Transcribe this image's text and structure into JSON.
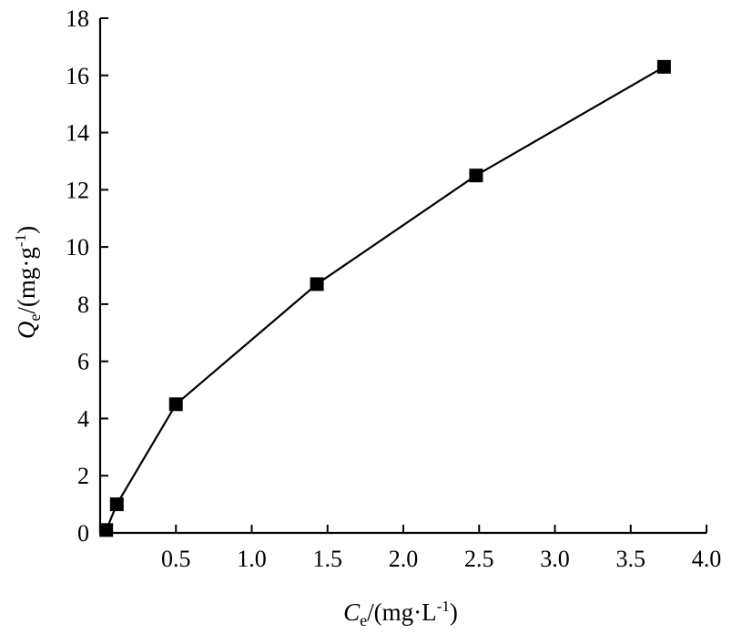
{
  "chart_data": {
    "type": "line",
    "title": "",
    "markers": "square",
    "color": "#000000",
    "grid": false,
    "xlim": [
      0,
      4.0
    ],
    "ylim": [
      0,
      18
    ],
    "x_ticks": [
      "0.5",
      "1.0",
      "1.5",
      "2.0",
      "2.5",
      "3.0",
      "3.5",
      "4.0"
    ],
    "y_ticks": [
      "0",
      "2",
      "4",
      "6",
      "8",
      "10",
      "12",
      "14",
      "16",
      "18"
    ],
    "x_tick_values": [
      0.5,
      1.0,
      1.5,
      2.0,
      2.5,
      3.0,
      3.5,
      4.0
    ],
    "y_tick_values": [
      0,
      2,
      4,
      6,
      8,
      10,
      12,
      14,
      16,
      18
    ],
    "xlabel": {
      "var": "C",
      "sub": "e",
      "unit_pre": "/(mg·L",
      "sup": "-1",
      "unit_post": ")"
    },
    "ylabel": {
      "var": "Q",
      "sub": "e",
      "unit_pre": "/(mg·g",
      "sup": "-1",
      "unit_post": ")"
    },
    "series": [
      {
        "x": [
          0.04,
          0.11,
          0.5,
          1.43,
          2.48,
          3.72
        ],
        "y": [
          0.1,
          1.0,
          4.5,
          8.7,
          12.5,
          16.3
        ]
      }
    ]
  }
}
